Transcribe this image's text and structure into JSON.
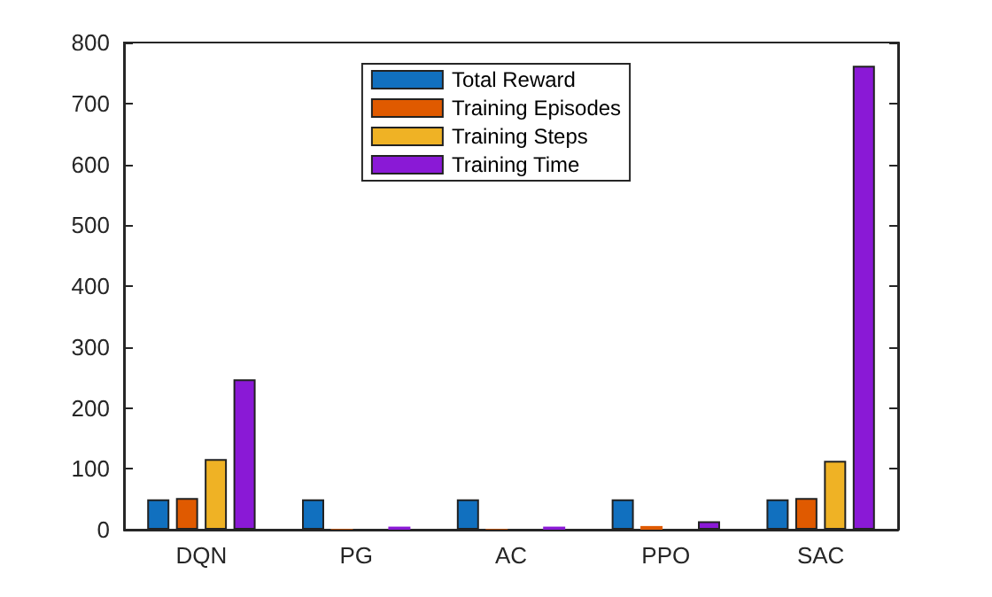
{
  "chart_data": {
    "type": "bar",
    "categories": [
      "DQN",
      "PG",
      "AC",
      "PPO",
      "SAC"
    ],
    "series": [
      {
        "name": "Total Reward",
        "color": "#1170bf",
        "values": [
          50,
          50,
          50,
          50,
          50
        ]
      },
      {
        "name": "Training Episodes",
        "color": "#e05a00",
        "values": [
          52,
          1,
          1,
          6,
          52
        ]
      },
      {
        "name": "Training Steps",
        "color": "#efb225",
        "values": [
          116,
          0,
          0,
          0,
          113
        ]
      },
      {
        "name": "Training Time",
        "color": "#8a19d6",
        "values": [
          247,
          5,
          5,
          14,
          762
        ]
      }
    ],
    "ylim": [
      0,
      800
    ],
    "yticks": [
      0,
      100,
      200,
      300,
      400,
      500,
      600,
      700,
      800
    ],
    "grid": false,
    "legend": "top"
  }
}
